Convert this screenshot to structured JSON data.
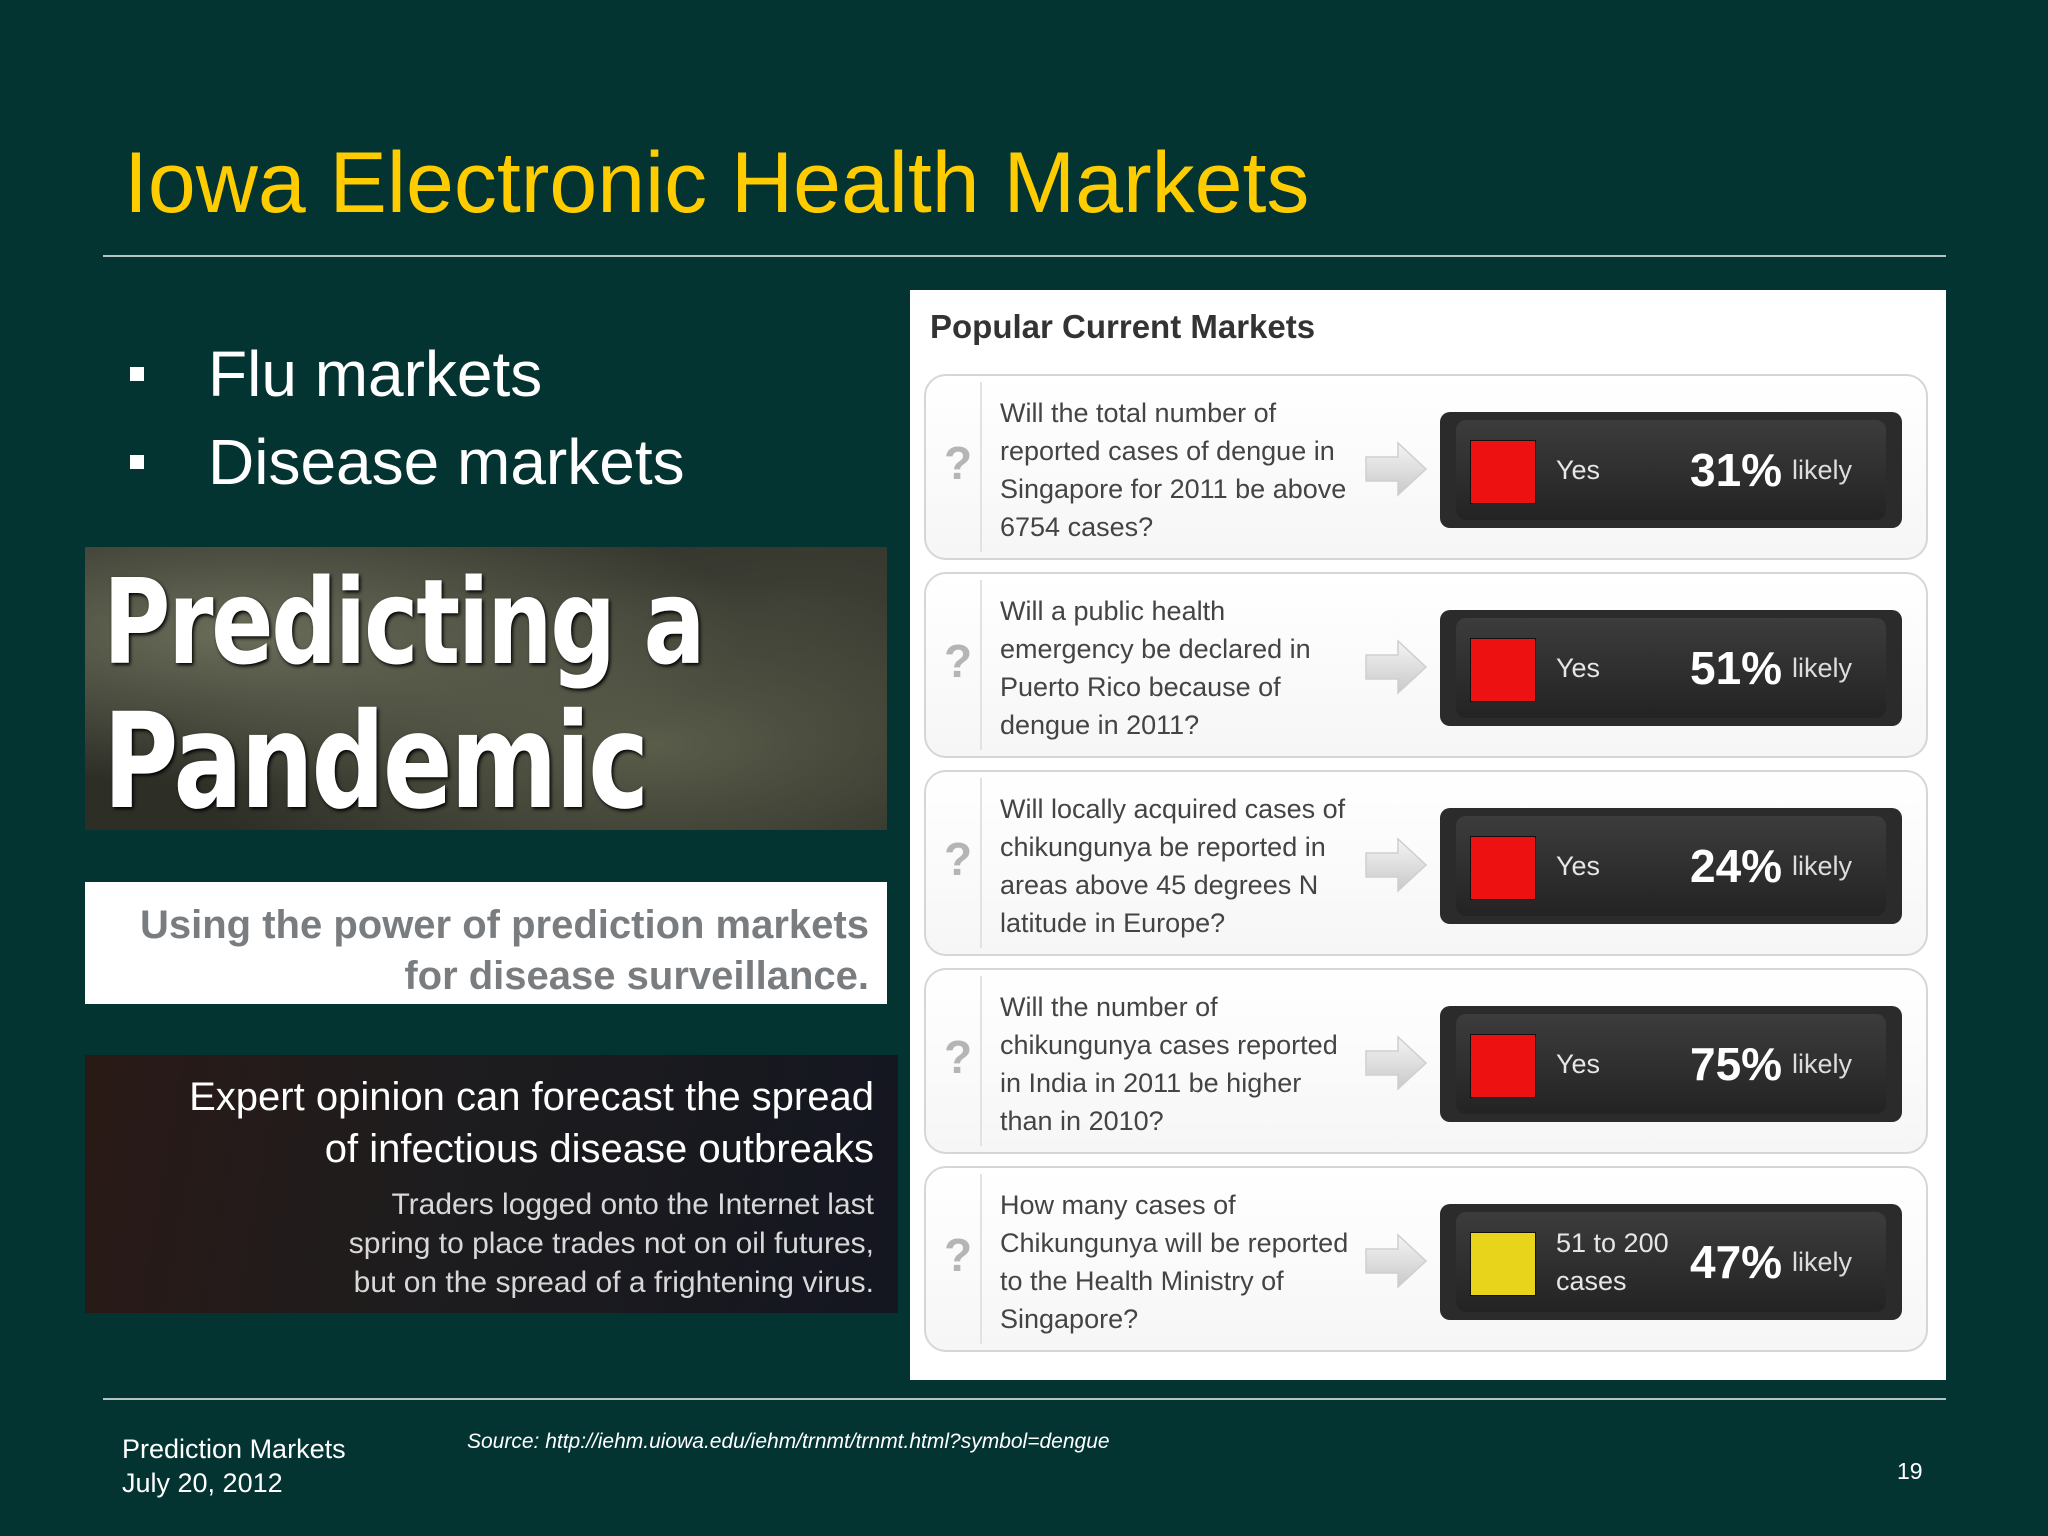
{
  "slide": {
    "title": "Iowa Electronic Health Markets",
    "bullets": [
      "Flu markets",
      "Disease markets"
    ],
    "images": {
      "pandemic": {
        "line1": "Predicting a",
        "line2": "Pandemic"
      },
      "tagline": {
        "line1": "Using the power of prediction markets",
        "line2": "for disease surveillance."
      },
      "expert": {
        "headline1": "Expert opinion can forecast the spread",
        "headline2": "of infectious disease outbreaks",
        "sub1": "Traders logged onto the Internet last",
        "sub2": "spring to place trades not on oil futures,",
        "sub3": "but on the spread of a frightening virus."
      }
    },
    "markets": {
      "title": "Popular Current Markets",
      "likely_label": "likely",
      "question_icon": "?",
      "items": [
        {
          "question": "Will the total number of reported cases of dengue in Singapore for 2011 be above 6754 cases?",
          "outcome": "Yes",
          "percent": "31%",
          "color": "#ee1111"
        },
        {
          "question": "Will a public health emergency be declared in Puerto Rico because of dengue in 2011?",
          "outcome": "Yes",
          "percent": "51%",
          "color": "#ee1111"
        },
        {
          "question": "Will locally acquired cases of chikungunya be reported in areas above 45 degrees N latitude in Europe?",
          "outcome": "Yes",
          "percent": "24%",
          "color": "#ee1111"
        },
        {
          "question": "Will the number of chikungunya cases reported in India in 2011 be higher than in 2010?",
          "outcome": "Yes",
          "percent": "75%",
          "color": "#ee1111"
        },
        {
          "question": "How many cases of Chikungunya will be reported to the Health Ministry of Singapore?",
          "outcome": "51 to 200 cases",
          "percent": "47%",
          "color": "#e8d41a"
        }
      ]
    },
    "footer": {
      "name": "Prediction Markets",
      "date": "July 20, 2012",
      "source": "Source: http://iehm.uiowa.edu/iehm/trnmt/trnmt.html?symbol=dengue",
      "page": "19"
    }
  }
}
